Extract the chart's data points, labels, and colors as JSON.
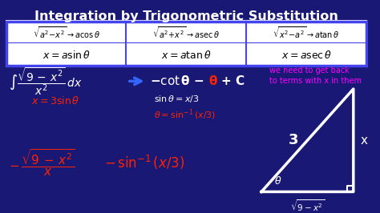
{
  "title": "Integration by Trigonometric Substitution",
  "bg_color": "#1a1a6e",
  "title_color": "#FFFFFF",
  "box_edge_color": "#4444FF",
  "black": "#000000",
  "white": "#FFFFFF",
  "red": "#FF2200",
  "blue": "#3366FF",
  "magenta": "#FF00FF",
  "yellow": "#FFFF00",
  "cell1_top": "$\\sqrt{a^2\\!-\\!x^2} \\rightarrow a\\cos\\theta$",
  "cell1_bot": "$x = a\\sin\\theta$",
  "cell2_top": "$\\sqrt{a^2\\!+\\!x^2} \\rightarrow a\\sec\\theta$",
  "cell2_bot": "$x = a\\tan\\theta$",
  "cell3_top": "$\\sqrt{x^2\\!-\\!a^2} \\rightarrow a\\tan\\theta$",
  "cell3_bot": "$x = a\\sec\\theta$",
  "magenta_note1": "we need to get back",
  "magenta_note2": "to terms with x in them",
  "tri_label_hyp": "3",
  "tri_label_opp": "x",
  "tri_label_adj": "$\\sqrt{9 - x^2}$",
  "tri_label_angle": "$\\theta$"
}
